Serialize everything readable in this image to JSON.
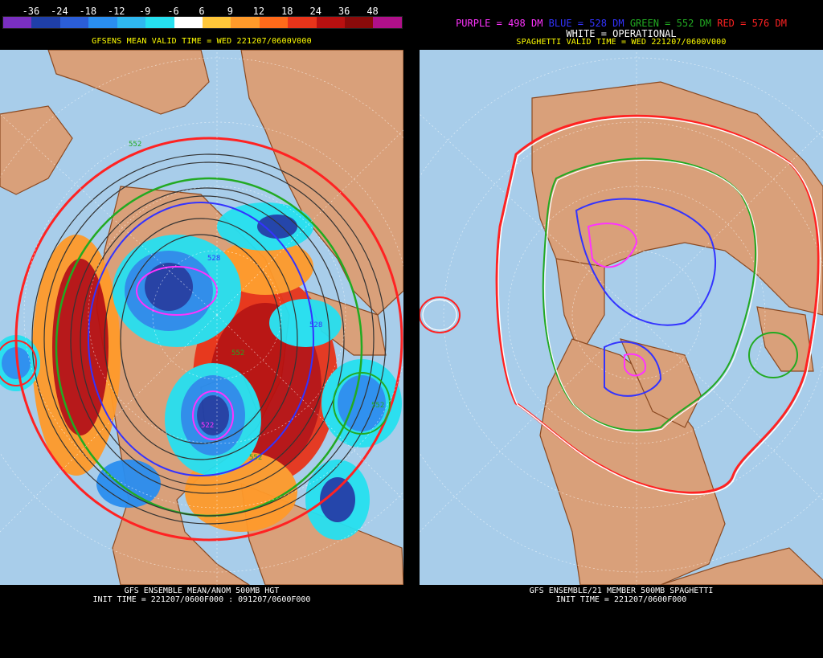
{
  "left": {
    "colorbar_labels": [
      "-36",
      "-24",
      "-18",
      "-12",
      "-9",
      "-6",
      "6",
      "9",
      "12",
      "18",
      "24",
      "36",
      "48"
    ],
    "colorbar_colors": [
      "#7a2fc0",
      "#1f3fa8",
      "#2b5ed8",
      "#2a8ef0",
      "#2fb8f0",
      "#26e0f0",
      "#ffffff",
      "#ffc63a",
      "#ff9a2a",
      "#ff6a1a",
      "#e8341a",
      "#b81010",
      "#8a0a0a",
      "#b0108a"
    ],
    "header": "GFSENS MEAN VALID TIME = WED 221207/0600V000",
    "footer_line1": "GFS ENSEMBLE MEAN/ANOM 500MB HGT",
    "footer_line2": "INIT TIME = 221207/0600F000 : 091207/0600F000",
    "contour_labels": [
      "528",
      "552",
      "552",
      "522",
      "528",
      "552",
      "552"
    ]
  },
  "right": {
    "legend": {
      "purple": "PURPLE = 498 DM",
      "blue": "BLUE = 528 DM",
      "green": "GREEN = 552 DM",
      "red": "RED = 576 DM"
    },
    "legend_colors": {
      "purple": "#ff33ff",
      "blue": "#3333ff",
      "green": "#22aa22",
      "red": "#ff2222"
    },
    "white_label": "WHITE = OPERATIONAL",
    "header": "SPAGHETTI VALID TIME = WED 221207/0600V000",
    "footer_line1": "GFS ENSEMBLE/21 MEMBER 500MB SPAGHETTI",
    "footer_line2": "INIT TIME = 221207/0600F000"
  },
  "colors": {
    "ocean": "#a8cdea",
    "land": "#d9a07a",
    "coast": "#8b4a22",
    "grid": "#ffffff"
  }
}
